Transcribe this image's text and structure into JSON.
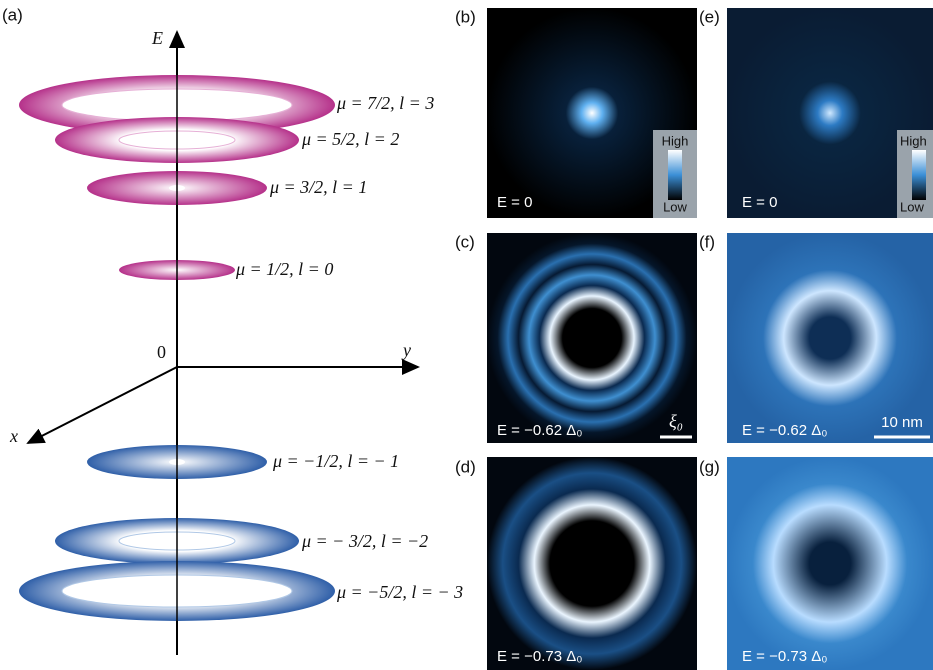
{
  "diagram": {
    "label": "(a)",
    "axis_e": "E",
    "axis_x": "x",
    "axis_y": "y",
    "origin": "0",
    "states": [
      "μ = 7/2, l = 3",
      "μ = 5/2, l = 2",
      "μ = 3/2, l = 1",
      "μ = 1/2, l = 0",
      "μ = −1/2, l = − 1",
      "μ = − 3/2, l = −2",
      "μ = −5/2, l = − 3"
    ]
  },
  "images": [
    {
      "label": "(b)",
      "energy": "E = 0",
      "colorbar_high": "High",
      "colorbar_low": "Low"
    },
    {
      "label": "(c)",
      "energy": "E = −0.62 Δ₀",
      "scale_bar": "ξ₀"
    },
    {
      "label": "(d)",
      "energy": "E = −0.73 Δ₀"
    },
    {
      "label": "(e)",
      "energy": "E = 0",
      "colorbar_high": "High",
      "colorbar_low": "Low"
    },
    {
      "label": "(f)",
      "energy": "E = −0.62 Δ₀",
      "scale_bar": "10 nm"
    },
    {
      "label": "(g)",
      "energy": "E = −0.73 Δ₀"
    }
  ]
}
